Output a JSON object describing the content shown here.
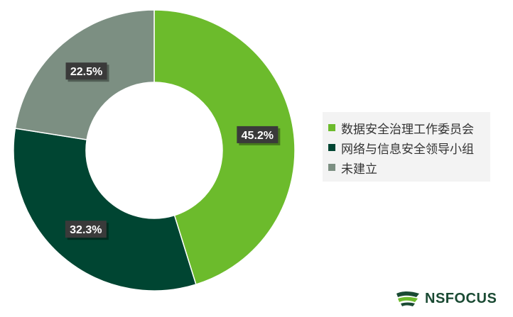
{
  "chart_data": {
    "type": "pie",
    "variant": "donut",
    "categories": [
      "数据安全治理工作委员会",
      "网络与信息安全领导小组",
      "未建立"
    ],
    "values": [
      45.2,
      32.3,
      22.5
    ],
    "labels": [
      "45.2%",
      "32.3%",
      "22.5%"
    ],
    "colors": [
      "#6cbb2c",
      "#004532",
      "#7c8f82"
    ],
    "legend_position": "right"
  },
  "logo": {
    "text": "NSFOCUS"
  }
}
